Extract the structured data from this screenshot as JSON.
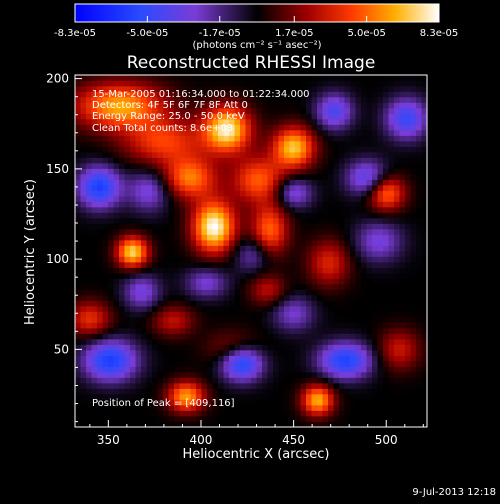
{
  "chart_data": {
    "type": "heatmap",
    "title": "Reconstructed RHESSI Image",
    "xlabel": "Heliocentric X (arcsec)",
    "ylabel": "Heliocentric Y (arcsec)",
    "xlim": [
      332,
      522
    ],
    "ylim": [
      7,
      202
    ],
    "x_ticks": [
      350,
      400,
      450,
      500
    ],
    "y_ticks": [
      50,
      100,
      150,
      200
    ],
    "colorbar": {
      "min": -8.3e-05,
      "max": 8.3e-05,
      "tick_values": [
        -8.3e-05,
        -5e-05,
        -1.7e-05,
        1.7e-05,
        5e-05,
        8.3e-05
      ],
      "tick_labels": [
        "-8.3e-05",
        "-5.0e-05",
        "-1.7e-05",
        "1.7e-05",
        "5.0e-05",
        "8.3e-05"
      ],
      "unit_label": "(photons cm⁻² s⁻¹ asec⁻²)"
    },
    "annotations": [
      "15-Mar-2005 01:16:34.000 to 01:22:34.000",
      "Detectors: 4F 5F 6F 7F 8F  Att 0",
      "Energy Range: 25.0 - 50.0 keV",
      "Clean     Total counts: 8.6e+03"
    ],
    "peak_label": "Position of Peak = [409,116]",
    "peak_position": [
      409,
      116
    ],
    "components": [
      {
        "x": 407,
        "y": 118,
        "amp": 8.3e-05,
        "sx": 8,
        "sy": 10
      },
      {
        "x": 414,
        "y": 172,
        "amp": 7.8e-05,
        "sx": 9,
        "sy": 9
      },
      {
        "x": 363,
        "y": 104,
        "amp": 7.2e-05,
        "sx": 6,
        "sy": 6
      },
      {
        "x": 450,
        "y": 162,
        "amp": 6.8e-05,
        "sx": 8,
        "sy": 8
      },
      {
        "x": 356,
        "y": 185,
        "amp": 6.2e-05,
        "sx": 17,
        "sy": 9
      },
      {
        "x": 463,
        "y": 22,
        "amp": 6.4e-05,
        "sx": 6,
        "sy": 6
      },
      {
        "x": 392,
        "y": 24,
        "amp": 6e-05,
        "sx": 7,
        "sy": 6
      },
      {
        "x": 394,
        "y": 145,
        "amp": 5.3e-05,
        "sx": 10,
        "sy": 8
      },
      {
        "x": 431,
        "y": 144,
        "amp": 4.8e-05,
        "sx": 10,
        "sy": 9
      },
      {
        "x": 437,
        "y": 116,
        "amp": 5e-05,
        "sx": 7,
        "sy": 10
      },
      {
        "x": 500,
        "y": 137,
        "amp": 5.4e-05,
        "sx": 7,
        "sy": 7
      },
      {
        "x": 380,
        "y": 165,
        "amp": 4.2e-05,
        "sx": 15,
        "sy": 9
      },
      {
        "x": 340,
        "y": 67,
        "amp": 3.8e-05,
        "sx": 8,
        "sy": 7
      },
      {
        "x": 469,
        "y": 98,
        "amp": 3.5e-05,
        "sx": 8,
        "sy": 9
      },
      {
        "x": 507,
        "y": 50,
        "amp": 3.1e-05,
        "sx": 8,
        "sy": 8
      },
      {
        "x": 385,
        "y": 66,
        "amp": 2.9e-05,
        "sx": 8,
        "sy": 6
      },
      {
        "x": 436,
        "y": 83,
        "amp": 2.8e-05,
        "sx": 7,
        "sy": 6
      },
      {
        "x": 418,
        "y": 50,
        "amp": 2.8e-05,
        "sx": 10,
        "sy": 7
      },
      {
        "x": 345,
        "y": 140,
        "amp": -6e-05,
        "sx": 8,
        "sy": 8
      },
      {
        "x": 351,
        "y": 44,
        "amp": -6e-05,
        "sx": 10,
        "sy": 8
      },
      {
        "x": 422,
        "y": 43,
        "amp": -6.6e-05,
        "sx": 8,
        "sy": 7
      },
      {
        "x": 478,
        "y": 44,
        "amp": -5.8e-05,
        "sx": 10,
        "sy": 7
      },
      {
        "x": 450,
        "y": 137,
        "amp": -3.6e-05,
        "sx": 7,
        "sy": 6
      },
      {
        "x": 490,
        "y": 145,
        "amp": -4.3e-05,
        "sx": 8,
        "sy": 7
      },
      {
        "x": 511,
        "y": 178,
        "amp": -4.8e-05,
        "sx": 8,
        "sy": 8
      },
      {
        "x": 472,
        "y": 182,
        "amp": -4.3e-05,
        "sx": 7,
        "sy": 7
      },
      {
        "x": 372,
        "y": 138,
        "amp": -3.3e-05,
        "sx": 8,
        "sy": 8
      },
      {
        "x": 496,
        "y": 110,
        "amp": -3.1e-05,
        "sx": 9,
        "sy": 8
      },
      {
        "x": 368,
        "y": 82,
        "amp": -3.2e-05,
        "sx": 7,
        "sy": 7
      },
      {
        "x": 450,
        "y": 70,
        "amp": -2.8e-05,
        "sx": 8,
        "sy": 7
      },
      {
        "x": 403,
        "y": 87,
        "amp": -2.9e-05,
        "sx": 8,
        "sy": 6
      },
      {
        "x": 428,
        "y": 103,
        "amp": -2.6e-05,
        "sx": 7,
        "sy": 7
      }
    ]
  },
  "footer": {
    "date": "9-Jul-2013 12:18"
  }
}
